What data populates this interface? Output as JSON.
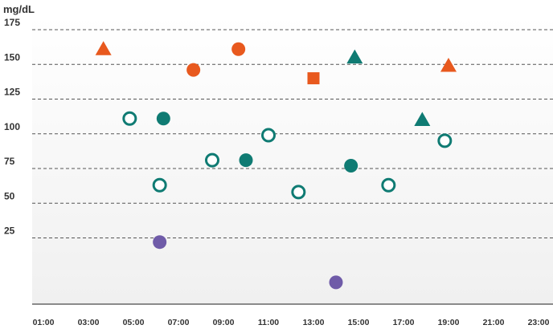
{
  "chart_data": {
    "type": "scatter",
    "ylabel": "mg/dL",
    "xlabel": "",
    "title": "",
    "y_ticks": [
      25,
      50,
      75,
      100,
      125,
      150,
      175
    ],
    "ylim": [
      -20,
      180
    ],
    "x_ticks": [
      "01:00",
      "03:00",
      "05:00",
      "07:00",
      "09:00",
      "11:00",
      "13:00",
      "15:00",
      "17:00",
      "19:00",
      "21:00",
      "23:00"
    ],
    "xlim": [
      "00:00",
      "24:00"
    ],
    "grid": "horizontal dashed",
    "background": "gradient white to light gray",
    "colors": {
      "orange": "#e8591e",
      "teal": "#0f7b73",
      "purple": "#6f5ba8"
    },
    "points": [
      {
        "x": "03:40",
        "y": 161,
        "shape": "triangle",
        "color": "orange",
        "filled": true
      },
      {
        "x": "07:40",
        "y": 146,
        "shape": "circle",
        "color": "orange",
        "filled": true
      },
      {
        "x": "09:40",
        "y": 161,
        "shape": "circle",
        "color": "orange",
        "filled": true
      },
      {
        "x": "13:00",
        "y": 140,
        "shape": "square",
        "color": "orange",
        "filled": true
      },
      {
        "x": "19:00",
        "y": 149,
        "shape": "triangle",
        "color": "orange",
        "filled": true
      },
      {
        "x": "14:50",
        "y": 155,
        "shape": "triangle",
        "color": "teal",
        "filled": true
      },
      {
        "x": "17:50",
        "y": 110,
        "shape": "triangle",
        "color": "teal",
        "filled": true
      },
      {
        "x": "06:20",
        "y": 111,
        "shape": "circle",
        "color": "teal",
        "filled": true
      },
      {
        "x": "10:00",
        "y": 81,
        "shape": "circle",
        "color": "teal",
        "filled": true
      },
      {
        "x": "14:40",
        "y": 77,
        "shape": "circle",
        "color": "teal",
        "filled": true
      },
      {
        "x": "04:50",
        "y": 111,
        "shape": "circle",
        "color": "teal",
        "filled": false
      },
      {
        "x": "06:10",
        "y": 63,
        "shape": "circle",
        "color": "teal",
        "filled": false
      },
      {
        "x": "08:30",
        "y": 81,
        "shape": "circle",
        "color": "teal",
        "filled": false
      },
      {
        "x": "11:00",
        "y": 99,
        "shape": "circle",
        "color": "teal",
        "filled": false
      },
      {
        "x": "12:20",
        "y": 58,
        "shape": "circle",
        "color": "teal",
        "filled": false
      },
      {
        "x": "16:20",
        "y": 63,
        "shape": "circle",
        "color": "teal",
        "filled": false
      },
      {
        "x": "18:50",
        "y": 95,
        "shape": "circle",
        "color": "teal",
        "filled": false
      },
      {
        "x": "06:10",
        "y": 22,
        "shape": "circle",
        "color": "purple",
        "filled": true
      },
      {
        "x": "14:00",
        "y": -7,
        "shape": "circle",
        "color": "purple",
        "filled": true
      }
    ]
  }
}
